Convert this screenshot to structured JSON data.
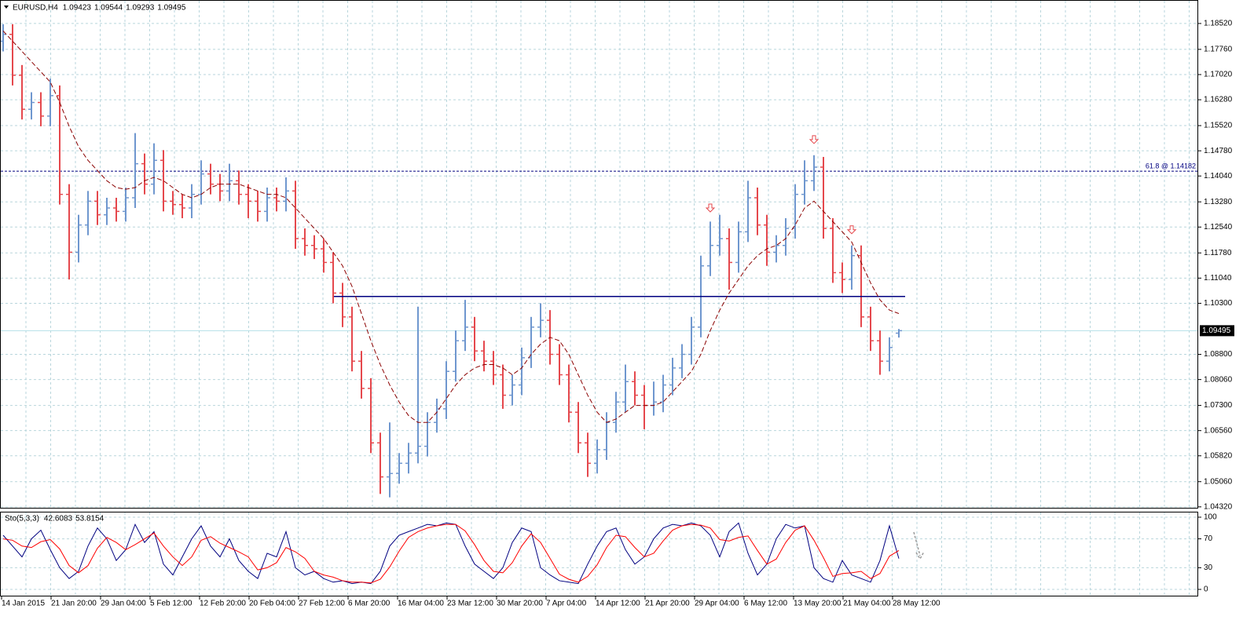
{
  "chart_data": [
    {
      "type": "ohlc",
      "title": "EURUSD,H4",
      "last_value_labels": [
        "1.09423",
        "1.09544",
        "1.09293",
        "1.09495"
      ],
      "up_color": "#6f97cf",
      "down_color": "#e5484d",
      "ylim": [
        1.0427,
        1.1921
      ],
      "yticks": [
        {
          "value": 1.1852,
          "label": "1.18520"
        },
        {
          "value": 1.1776,
          "label": "1.17760"
        },
        {
          "value": 1.1702,
          "label": "1.17020"
        },
        {
          "value": 1.1628,
          "label": "1.16280"
        },
        {
          "value": 1.1552,
          "label": "1.15520"
        },
        {
          "value": 1.1478,
          "label": "1.14780"
        },
        {
          "value": 1.1404,
          "label": "1.14040"
        },
        {
          "value": 1.1328,
          "label": "1.13280"
        },
        {
          "value": 1.1254,
          "label": "1.12540"
        },
        {
          "value": 1.1178,
          "label": "1.11780"
        },
        {
          "value": 1.1104,
          "label": "1.11040"
        },
        {
          "value": 1.103,
          "label": "1.10300"
        },
        {
          "value": 1.088,
          "label": "1.08800"
        },
        {
          "value": 1.0806,
          "label": "1.08060"
        },
        {
          "value": 1.073,
          "label": "1.07300"
        },
        {
          "value": 1.0656,
          "label": "1.06560"
        },
        {
          "value": 1.0582,
          "label": "1.05820"
        },
        {
          "value": 1.0506,
          "label": "1.05060"
        },
        {
          "value": 1.0432,
          "label": "1.04320"
        }
      ],
      "grid": true,
      "xticks": [
        "14 Jan 2015",
        "21 Jan 20:00",
        "29 Jan 04:00",
        "5 Feb 12:00",
        "12 Feb 20:00",
        "20 Feb 04:00",
        "27 Feb 12:00",
        "6 Mar 20:00",
        "16 Mar 04:00",
        "23 Mar 12:00",
        "30 Mar 20:00",
        "7 Apr 04:00",
        "14 Apr 12:00",
        "21 Apr 20:00",
        "29 Apr 04:00",
        "6 May 12:00",
        "13 May 20:00",
        "21 May 04:00",
        "28 May 12:00"
      ],
      "bars": [
        [
          1.18,
          1.185,
          1.177,
          1.182
        ],
        [
          1.182,
          1.185,
          1.167,
          1.17
        ],
        [
          1.17,
          1.173,
          1.157,
          1.16
        ],
        [
          1.16,
          1.165,
          1.157,
          1.162
        ],
        [
          1.162,
          1.165,
          1.155,
          1.158
        ],
        [
          1.158,
          1.169,
          1.155,
          1.164
        ],
        [
          1.164,
          1.167,
          1.132,
          1.135
        ],
        [
          1.135,
          1.138,
          1.11,
          1.118
        ],
        [
          1.118,
          1.129,
          1.115,
          1.126
        ],
        [
          1.126,
          1.136,
          1.123,
          1.133
        ],
        [
          1.133,
          1.136,
          1.126,
          1.129
        ],
        [
          1.129,
          1.134,
          1.126,
          1.131
        ],
        [
          1.131,
          1.134,
          1.127,
          1.13
        ],
        [
          1.13,
          1.137,
          1.127,
          1.134
        ],
        [
          1.134,
          1.153,
          1.131,
          1.144
        ],
        [
          1.144,
          1.147,
          1.135,
          1.138
        ],
        [
          1.138,
          1.15,
          1.135,
          1.145
        ],
        [
          1.145,
          1.148,
          1.13,
          1.133
        ],
        [
          1.133,
          1.136,
          1.129,
          1.132
        ],
        [
          1.132,
          1.135,
          1.128,
          1.131
        ],
        [
          1.131,
          1.138,
          1.128,
          1.135
        ],
        [
          1.135,
          1.145,
          1.132,
          1.141
        ],
        [
          1.141,
          1.144,
          1.135,
          1.138
        ],
        [
          1.138,
          1.141,
          1.133,
          1.136
        ],
        [
          1.136,
          1.144,
          1.133,
          1.139
        ],
        [
          1.139,
          1.142,
          1.132,
          1.135
        ],
        [
          1.135,
          1.138,
          1.128,
          1.133
        ],
        [
          1.133,
          1.136,
          1.127,
          1.13
        ],
        [
          1.13,
          1.137,
          1.127,
          1.134
        ],
        [
          1.134,
          1.137,
          1.13,
          1.133
        ],
        [
          1.133,
          1.14,
          1.13,
          1.136
        ],
        [
          1.136,
          1.139,
          1.119,
          1.122
        ],
        [
          1.122,
          1.125,
          1.117,
          1.12
        ],
        [
          1.12,
          1.123,
          1.116,
          1.119
        ],
        [
          1.119,
          1.122,
          1.112,
          1.115
        ],
        [
          1.115,
          1.118,
          1.103,
          1.106
        ],
        [
          1.106,
          1.109,
          1.096,
          1.099
        ],
        [
          1.099,
          1.102,
          1.083,
          1.086
        ],
        [
          1.086,
          1.089,
          1.075,
          1.078
        ],
        [
          1.078,
          1.081,
          1.059,
          1.062
        ],
        [
          1.062,
          1.065,
          1.047,
          1.052
        ],
        [
          1.052,
          1.068,
          1.046,
          1.053
        ],
        [
          1.053,
          1.059,
          1.05,
          1.056
        ],
        [
          1.056,
          1.062,
          1.053,
          1.059
        ],
        [
          1.059,
          1.102,
          1.056,
          1.061
        ],
        [
          1.061,
          1.071,
          1.058,
          1.068
        ],
        [
          1.068,
          1.075,
          1.065,
          1.072
        ],
        [
          1.072,
          1.086,
          1.069,
          1.083
        ],
        [
          1.083,
          1.095,
          1.08,
          1.092
        ],
        [
          1.092,
          1.104,
          1.089,
          1.096
        ],
        [
          1.096,
          1.099,
          1.086,
          1.089
        ],
        [
          1.089,
          1.092,
          1.083,
          1.086
        ],
        [
          1.086,
          1.089,
          1.079,
          1.082
        ],
        [
          1.082,
          1.085,
          1.072,
          1.076
        ],
        [
          1.076,
          1.082,
          1.073,
          1.079
        ],
        [
          1.079,
          1.09,
          1.076,
          1.087
        ],
        [
          1.087,
          1.099,
          1.084,
          1.096
        ],
        [
          1.096,
          1.103,
          1.093,
          1.098
        ],
        [
          1.098,
          1.101,
          1.085,
          1.088
        ],
        [
          1.088,
          1.091,
          1.079,
          1.082
        ],
        [
          1.082,
          1.085,
          1.068,
          1.071
        ],
        [
          1.071,
          1.074,
          1.059,
          1.062
        ],
        [
          1.062,
          1.065,
          1.052,
          1.056
        ],
        [
          1.056,
          1.063,
          1.053,
          1.06
        ],
        [
          1.06,
          1.071,
          1.057,
          1.068
        ],
        [
          1.068,
          1.077,
          1.065,
          1.074
        ],
        [
          1.074,
          1.085,
          1.071,
          1.08
        ],
        [
          1.08,
          1.083,
          1.073,
          1.076
        ],
        [
          1.076,
          1.079,
          1.066,
          1.073
        ],
        [
          1.073,
          1.08,
          1.07,
          1.074
        ],
        [
          1.074,
          1.082,
          1.071,
          1.079
        ],
        [
          1.079,
          1.087,
          1.076,
          1.084
        ],
        [
          1.084,
          1.091,
          1.081,
          1.088
        ],
        [
          1.088,
          1.099,
          1.085,
          1.096
        ],
        [
          1.096,
          1.117,
          1.093,
          1.114
        ],
        [
          1.114,
          1.127,
          1.111,
          1.12
        ],
        [
          1.12,
          1.129,
          1.117,
          1.122
        ],
        [
          1.122,
          1.125,
          1.107,
          1.115
        ],
        [
          1.115,
          1.127,
          1.112,
          1.124
        ],
        [
          1.124,
          1.139,
          1.121,
          1.134
        ],
        [
          1.134,
          1.137,
          1.123,
          1.126
        ],
        [
          1.126,
          1.129,
          1.114,
          1.118
        ],
        [
          1.118,
          1.123,
          1.115,
          1.12
        ],
        [
          1.12,
          1.128,
          1.117,
          1.125
        ],
        [
          1.125,
          1.138,
          1.122,
          1.135
        ],
        [
          1.135,
          1.145,
          1.132,
          1.139
        ],
        [
          1.139,
          1.1465,
          1.136,
          1.143
        ],
        [
          1.143,
          1.146,
          1.122,
          1.125
        ],
        [
          1.125,
          1.128,
          1.109,
          1.112
        ],
        [
          1.112,
          1.115,
          1.106,
          1.11
        ],
        [
          1.11,
          1.12,
          1.107,
          1.117
        ],
        [
          1.117,
          1.12,
          1.096,
          1.099
        ],
        [
          1.099,
          1.102,
          1.089,
          1.092
        ],
        [
          1.092,
          1.095,
          1.082,
          1.086
        ],
        [
          1.086,
          1.093,
          1.083,
          1.09
        ],
        [
          1.09423,
          1.09544,
          1.09293,
          1.09495
        ]
      ],
      "ma": {
        "color": "#8b0000",
        "values": [
          1.183,
          1.18,
          1.177,
          1.174,
          1.171,
          1.168,
          1.162,
          1.155,
          1.149,
          1.145,
          1.142,
          1.139,
          1.137,
          1.1365,
          1.137,
          1.139,
          1.14,
          1.139,
          1.137,
          1.135,
          1.134,
          1.135,
          1.137,
          1.138,
          1.138,
          1.138,
          1.137,
          1.136,
          1.135,
          1.135,
          1.134,
          1.131,
          1.128,
          1.125,
          1.122,
          1.118,
          1.114,
          1.108,
          1.1,
          1.092,
          1.085,
          1.079,
          1.074,
          1.07,
          1.068,
          1.068,
          1.071,
          1.075,
          1.079,
          1.082,
          1.084,
          1.085,
          1.085,
          1.084,
          1.082,
          1.084,
          1.088,
          1.091,
          1.093,
          1.092,
          1.088,
          1.082,
          1.076,
          1.071,
          1.068,
          1.069,
          1.071,
          1.073,
          1.073,
          1.073,
          1.074,
          1.077,
          1.08,
          1.083,
          1.088,
          1.095,
          1.101,
          1.106,
          1.11,
          1.114,
          1.117,
          1.119,
          1.12,
          1.122,
          1.126,
          1.131,
          1.133,
          1.13,
          1.127,
          1.124,
          1.121,
          1.115,
          1.109,
          1.104,
          1.101,
          1.1
        ]
      },
      "level": {
        "value": 1.105,
        "color": "#000080"
      },
      "fib": {
        "value": 1.14182,
        "label": "61.8 @ 1.14182",
        "color": "#000080"
      },
      "current_price": {
        "value": 1.09495,
        "label": "1.09495",
        "color": "#b4e0e8"
      },
      "arrows": [
        {
          "bar": 75,
          "price": 1.131,
          "color": "#e5484d"
        },
        {
          "bar": 86,
          "price": 1.1511,
          "color": "#e5484d"
        },
        {
          "bar": 90,
          "price": 1.1246,
          "color": "#e5484d"
        }
      ]
    },
    {
      "type": "stochastic",
      "title": "Sto(5,3,3)",
      "last_value_labels": [
        "42.6083",
        "53.8154"
      ],
      "ylim": [
        -9.8,
        107.6
      ],
      "yticks": [
        100,
        70,
        30,
        0
      ],
      "grid": true,
      "series": [
        {
          "color": "#000080",
          "values": [
            75,
            60,
            45,
            70,
            82,
            55,
            30,
            15,
            25,
            60,
            85,
            70,
            40,
            55,
            90,
            65,
            80,
            35,
            20,
            45,
            70,
            88,
            60,
            45,
            70,
            40,
            25,
            15,
            50,
            45,
            80,
            30,
            20,
            25,
            15,
            10,
            12,
            8,
            10,
            8,
            25,
            60,
            75,
            80,
            85,
            90,
            88,
            92,
            90,
            60,
            35,
            25,
            15,
            30,
            65,
            85,
            80,
            30,
            20,
            12,
            10,
            8,
            35,
            60,
            80,
            85,
            55,
            35,
            45,
            70,
            85,
            90,
            88,
            92,
            88,
            75,
            45,
            80,
            92,
            50,
            20,
            35,
            70,
            90,
            85,
            88,
            30,
            15,
            10,
            40,
            20,
            15,
            10,
            40,
            88,
            42.6083
          ]
        },
        {
          "color": "#ff0000",
          "values": [
            70,
            68,
            60,
            58,
            66,
            69,
            56,
            33,
            23,
            33,
            57,
            72,
            65,
            55,
            62,
            70,
            78,
            60,
            45,
            33,
            45,
            68,
            73,
            64,
            58,
            52,
            45,
            27,
            30,
            37,
            58,
            52,
            43,
            25,
            20,
            17,
            12,
            10,
            10,
            9,
            14,
            31,
            53,
            72,
            80,
            85,
            88,
            90,
            90,
            81,
            62,
            40,
            25,
            23,
            37,
            60,
            77,
            65,
            43,
            21,
            14,
            10,
            18,
            34,
            58,
            75,
            73,
            58,
            45,
            50,
            67,
            82,
            88,
            90,
            89,
            85,
            69,
            67,
            72,
            74,
            54,
            35,
            42,
            65,
            82,
            88,
            68,
            44,
            18,
            22,
            23,
            25,
            15,
            22,
            46,
            53.8154
          ]
        }
      ]
    }
  ]
}
